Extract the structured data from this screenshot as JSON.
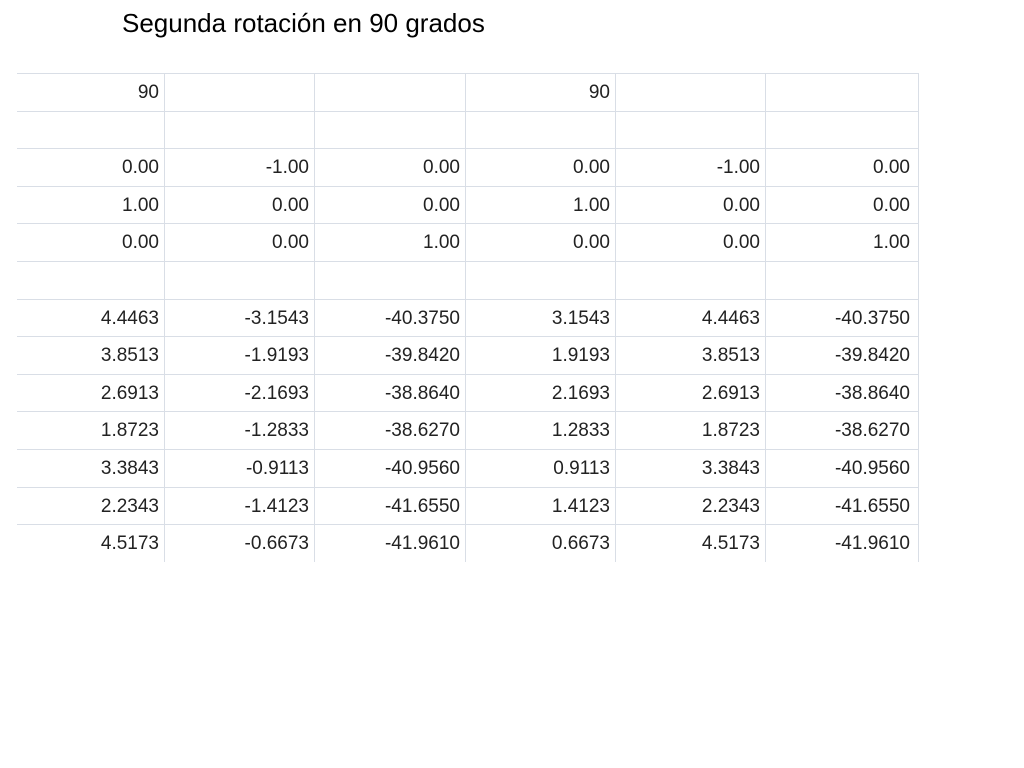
{
  "header": {
    "title": "Segunda rotación en 90 grados"
  },
  "table": {
    "rows": [
      [
        "90",
        null,
        null,
        "90",
        null,
        null
      ],
      [
        null,
        null,
        null,
        null,
        null,
        null
      ],
      [
        "0.00",
        "-1.00",
        "0.00",
        "0.00",
        "-1.00",
        "0.00"
      ],
      [
        "1.00",
        "0.00",
        "0.00",
        "1.00",
        "0.00",
        "0.00"
      ],
      [
        "0.00",
        "0.00",
        "1.00",
        "0.00",
        "0.00",
        "1.00"
      ],
      [
        null,
        null,
        null,
        null,
        null,
        null
      ],
      [
        "4.4463",
        "-3.1543",
        "-40.3750",
        "3.1543",
        "4.4463",
        "-40.3750"
      ],
      [
        "3.8513",
        "-1.9193",
        "-39.8420",
        "1.9193",
        "3.8513",
        "-39.8420"
      ],
      [
        "2.6913",
        "-2.1693",
        "-38.8640",
        "2.1693",
        "2.6913",
        "-38.8640"
      ],
      [
        "1.8723",
        "-1.2833",
        "-38.6270",
        "1.2833",
        "1.8723",
        "-38.6270"
      ],
      [
        "3.3843",
        "-0.9113",
        "-40.9560",
        "0.9113",
        "3.3843",
        "-40.9560"
      ],
      [
        "2.2343",
        "-1.4123",
        "-41.6550",
        "1.4123",
        "2.2343",
        "-41.6550"
      ],
      [
        "4.5173",
        "-0.6673",
        "-41.9610",
        "0.6673",
        "4.5173",
        "-41.9610"
      ]
    ]
  }
}
